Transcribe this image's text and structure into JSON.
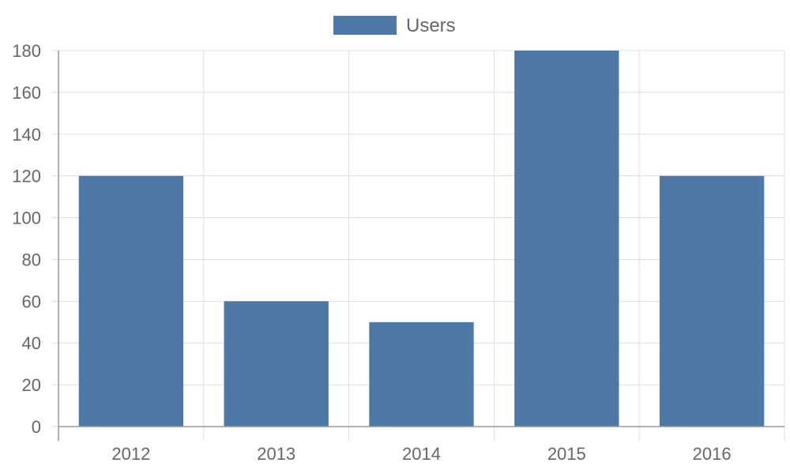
{
  "chart_data": {
    "type": "bar",
    "categories": [
      "2012",
      "2013",
      "2014",
      "2015",
      "2016"
    ],
    "series": [
      {
        "name": "Users",
        "values": [
          120,
          60,
          50,
          180,
          120
        ],
        "color": "#4e79a7"
      }
    ],
    "ylim": [
      0,
      180
    ],
    "y_ticks": [
      0,
      20,
      40,
      60,
      80,
      100,
      120,
      140,
      160,
      180
    ],
    "grid": true,
    "legend_position": "top-center",
    "colors": {
      "grid": "#dddddd",
      "axis": "#999999",
      "text": "#666666"
    }
  }
}
